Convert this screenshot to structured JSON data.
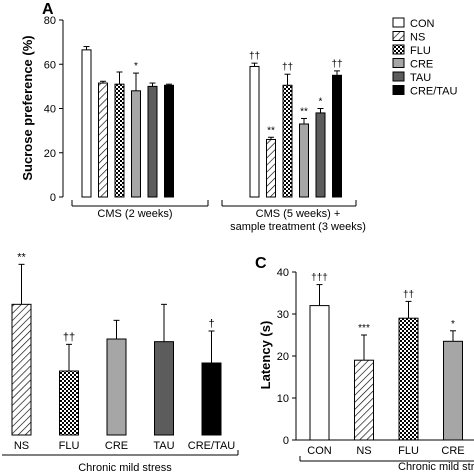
{
  "chart_data": [
    {
      "type": "bar",
      "panel_label": "A",
      "ylabel": "Sucrose preference (%)",
      "ylim": [
        0,
        80
      ],
      "yticks": [
        0,
        20,
        40,
        60,
        80
      ],
      "legend": {
        "placement": "top-right",
        "entries": [
          {
            "key": "CON",
            "label": "CON",
            "fill": "white"
          },
          {
            "key": "NS",
            "label": "NS",
            "fill": "hatch"
          },
          {
            "key": "FLU",
            "label": "FLU",
            "fill": "check"
          },
          {
            "key": "CRE",
            "label": "CRE",
            "fill": "#a6a6a6"
          },
          {
            "key": "TAU",
            "label": "TAU",
            "fill": "#5c5c5c"
          },
          {
            "key": "CRE/TAU",
            "label": "CRE/TAU",
            "fill": "#000000"
          }
        ]
      },
      "groups": [
        {
          "label": "CMS (2 weeks)",
          "bars": [
            {
              "series": "CON",
              "value": 66.5,
              "error": 1.5,
              "mark": ""
            },
            {
              "series": "NS",
              "value": 51.5,
              "error": 0.8,
              "mark": ""
            },
            {
              "series": "FLU",
              "value": 51.0,
              "error": 5.5,
              "mark": ""
            },
            {
              "series": "CRE",
              "value": 48.0,
              "error": 8.0,
              "mark": "*"
            },
            {
              "series": "TAU",
              "value": 50.0,
              "error": 1.5,
              "mark": ""
            },
            {
              "series": "CRE/TAU",
              "value": 50.5,
              "error": 0.5,
              "mark": ""
            }
          ]
        },
        {
          "label_lines": [
            "CMS (5 weeks) +",
            "sample treatment (3 weeks)"
          ],
          "bars": [
            {
              "series": "CON",
              "value": 59.0,
              "error": 1.5,
              "mark": "††"
            },
            {
              "series": "NS",
              "value": 26.0,
              "error": 1.0,
              "mark": "**"
            },
            {
              "series": "FLU",
              "value": 50.5,
              "error": 5.0,
              "mark": "††"
            },
            {
              "series": "CRE",
              "value": 33.0,
              "error": 2.5,
              "mark": "**"
            },
            {
              "series": "TAU",
              "value": 38.0,
              "error": 2.0,
              "mark": "*"
            },
            {
              "series": "CRE/TAU",
              "value": 55.0,
              "error": 2.0,
              "mark": "††"
            }
          ]
        }
      ]
    },
    {
      "type": "bar",
      "panel_label": "",
      "ylim": [
        0,
        30
      ],
      "categories": [
        "NS",
        "FLU",
        "CRE",
        "TAU",
        "CRE/TAU"
      ],
      "values": [
        24.5,
        12.0,
        18.0,
        17.5,
        13.5
      ],
      "errors": [
        7.5,
        5.0,
        3.5,
        7.0,
        6.0
      ],
      "marks": [
        "**",
        "††",
        "",
        "",
        "†"
      ],
      "fills": [
        "hatch",
        "check",
        "#a6a6a6",
        "#5c5c5c",
        "#000000"
      ],
      "xlabel": "Chronic mild stress"
    },
    {
      "type": "bar",
      "panel_label": "C",
      "ylabel": "Latency (s)",
      "ylim": [
        0,
        40
      ],
      "yticks": [
        0,
        10,
        20,
        30,
        40
      ],
      "categories": [
        "CON",
        "NS",
        "FLU",
        "CRE"
      ],
      "values": [
        32.0,
        19.0,
        29.0,
        23.5
      ],
      "errors": [
        5.0,
        6.0,
        4.0,
        2.5
      ],
      "marks": [
        "†††",
        "***",
        "††",
        "*"
      ],
      "fills": [
        "white",
        "hatch",
        "check",
        "#a6a6a6"
      ],
      "xlabel": "Chronic mild str"
    }
  ]
}
